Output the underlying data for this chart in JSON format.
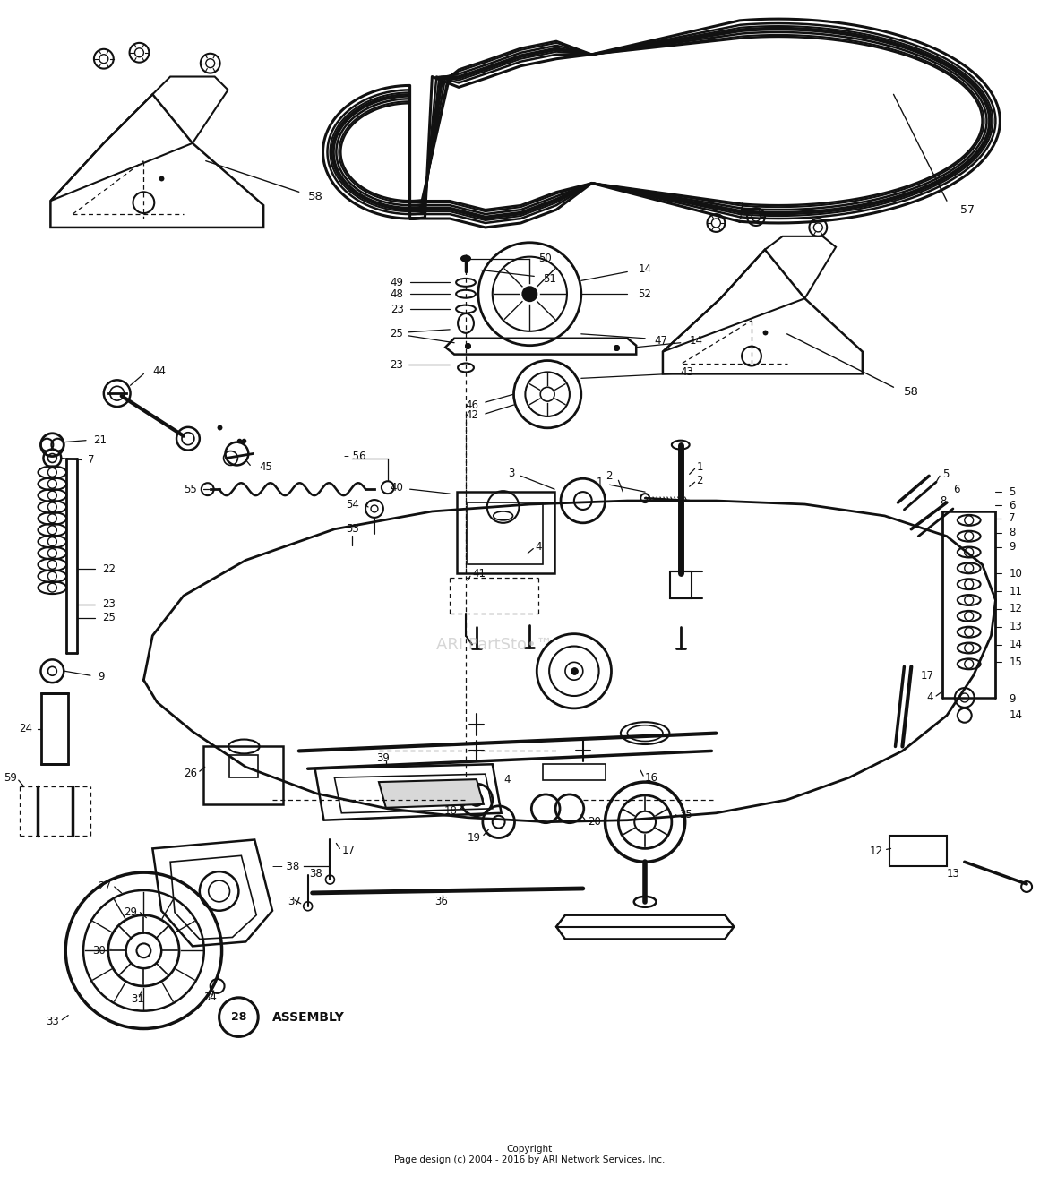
{
  "bg_color": "#ffffff",
  "line_color": "#111111",
  "text_color": "#111111",
  "figsize": [
    11.8,
    13.42
  ],
  "dpi": 100,
  "copyright": "Copyright\nPage design (c) 2004 - 2016 by ARI Network Services, Inc.",
  "watermark": "ARI PartSto•™"
}
